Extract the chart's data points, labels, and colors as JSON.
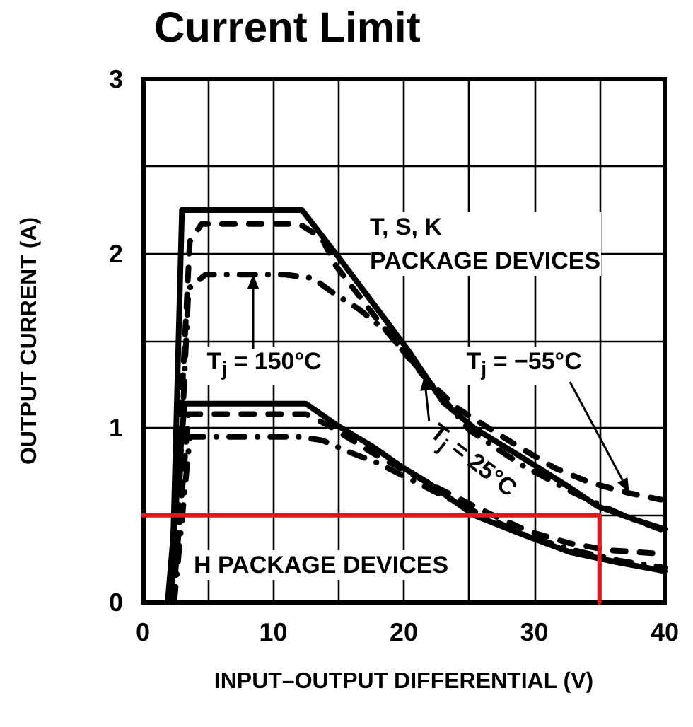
{
  "chart_data": {
    "type": "line",
    "title": "Current Limit",
    "xlabel": "INPUT–OUTPUT DIFFERENTIAL (V)",
    "ylabel": "OUTPUT CURRENT (A)",
    "xlim": [
      0,
      40
    ],
    "xticks": [
      0,
      {
        "value": 5,
        "label": null
      },
      10,
      {
        "value": 15,
        "label": null
      },
      20,
      {
        "value": 25,
        "label": null
      },
      30,
      {
        "value": 35,
        "label": null
      },
      40
    ],
    "ylim": [
      0,
      3
    ],
    "yticks": [
      0,
      {
        "value": 0.5,
        "label": null
      },
      1,
      {
        "value": 1.5,
        "label": null
      },
      2,
      {
        "value": 2.5,
        "label": null
      },
      3
    ],
    "grid": true,
    "series": [
      {
        "color": "#000000",
        "line_style": "solid",
        "x": [
          2.2,
          3.0,
          12.2,
          15,
          19,
          20.3,
          23,
          25.4,
          29.1,
          32.7,
          34.9,
          37.5,
          40
        ],
        "values": [
          0,
          2.25,
          2.25,
          1.98,
          1.58,
          1.45,
          1.15,
          1.0,
          0.83,
          0.66,
          0.55,
          0.48,
          0.42
        ]
      },
      {
        "color": "#000000",
        "line_style": "dashed",
        "x": [
          2.2,
          3.6,
          4.5,
          12,
          13.7,
          14.8,
          18,
          21.5,
          24,
          26.5,
          29.1,
          31.6,
          34.2,
          37.1,
          39.7
        ],
        "values": [
          0,
          2.07,
          2.17,
          2.17,
          2.09,
          1.93,
          1.62,
          1.3,
          1.12,
          1.0,
          0.88,
          0.77,
          0.69,
          0.63,
          0.59
        ]
      },
      {
        "color": "#000000",
        "line_style": "dashdot",
        "x": [
          2.4,
          3.5,
          4.8,
          10.9,
          13,
          14.5,
          16.6,
          18.75,
          21.6,
          25,
          29,
          33,
          36.5,
          40
        ],
        "values": [
          0,
          1.8,
          1.88,
          1.88,
          1.86,
          1.78,
          1.68,
          1.55,
          1.3,
          0.99,
          0.79,
          0.63,
          0.51,
          0.41
        ]
      },
      {
        "color": "#000000",
        "line_style": "solid",
        "x": [
          1.9,
          3.2,
          12.5,
          14.8,
          17.7,
          19.8,
          21.8,
          25.4,
          29.1,
          32.7,
          36.4,
          40
        ],
        "values": [
          0,
          1.14,
          1.14,
          1.02,
          0.89,
          0.78,
          0.69,
          0.5,
          0.39,
          0.29,
          0.23,
          0.18
        ]
      },
      {
        "color": "#000000",
        "line_style": "dashed",
        "x": [
          2.3,
          3.5,
          12.5,
          14.1,
          18,
          22,
          26,
          29.5,
          32.7,
          35.7,
          39.7
        ],
        "values": [
          0,
          1.08,
          1.08,
          1.02,
          0.84,
          0.68,
          0.53,
          0.41,
          0.34,
          0.3,
          0.28
        ]
      },
      {
        "color": "#000000",
        "line_style": "dashdot",
        "x": [
          2.4,
          3.6,
          12,
          13.75,
          15.9,
          18,
          22,
          26,
          29.5,
          33,
          36.5,
          40
        ],
        "values": [
          0,
          0.95,
          0.95,
          0.93,
          0.86,
          0.8,
          0.65,
          0.5,
          0.38,
          0.3,
          0.24,
          0.2
        ]
      },
      {
        "color": "#e5141c",
        "line_style": "solid",
        "x": [
          0,
          35,
          35
        ],
        "values": [
          0.5,
          0.5,
          0
        ]
      }
    ],
    "annotations": [
      "T, S, K\nPACKAGE DEVICES",
      "T$_{j}$ = 150°C",
      "T$_{j}$ = −55°C",
      {
        "text": "T$_{j}$ = 25°C",
        "x": 21.6,
        "y": 1.3
      },
      "H PACKAGE DEVICES"
    ]
  }
}
